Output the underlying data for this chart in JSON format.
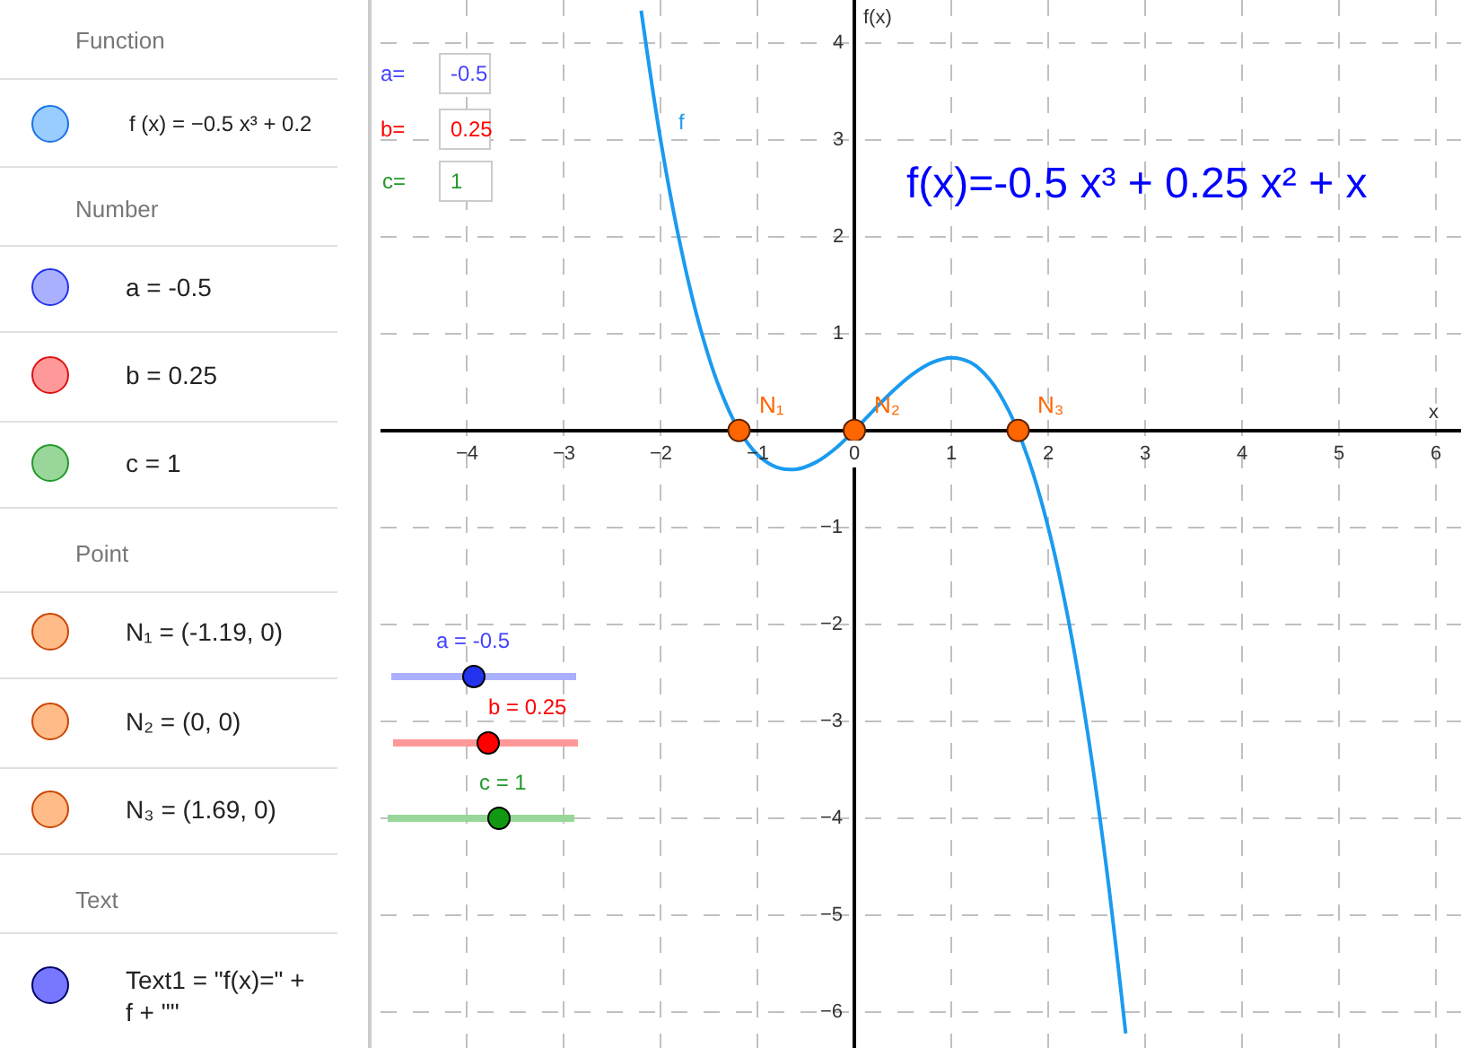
{
  "chart_data": [
    {
      "type": "other",
      "annotations": [
        "Function",
        "f (x) = −0.5 x³ + 0.2",
        "Number",
        "a = -0.5",
        "b = 0.25",
        "c = 1",
        "Point",
        "N₁ = (-1.19, 0)",
        "N₂ = (0, 0)",
        "N₃ = (1.69, 0)",
        "Text",
        "Text1 = \"f(x)=\" +\nf + \"\""
      ]
    },
    {
      "type": "line",
      "xlabel": "x",
      "ylabel": "f(x)",
      "xlim": [
        -4.89,
        6.26
      ],
      "ylim": [
        -6.37,
        4.44
      ],
      "xticks": [
        {
          "value": -4,
          "label": "−4"
        },
        {
          "value": -3,
          "label": "−3"
        },
        {
          "value": -2,
          "label": "−2"
        },
        {
          "value": -1,
          "label": "−1"
        },
        0,
        1,
        2,
        3,
        4,
        5,
        6
      ],
      "yticks": [
        {
          "value": -6,
          "label": "−6"
        },
        {
          "value": -5,
          "label": "−5"
        },
        {
          "value": -4,
          "label": "−4"
        },
        {
          "value": -3,
          "label": "−3"
        },
        {
          "value": -2,
          "label": "−2"
        },
        {
          "value": -1,
          "label": "−1"
        },
        1,
        2,
        3,
        4
      ],
      "grid": true,
      "series": [
        {
          "type": "line",
          "color": "#1a9bf0",
          "marker": "none",
          "x": [
            -2.2,
            -2.0,
            -1.8,
            -1.6,
            -1.4,
            -1.2,
            -1.0,
            -0.8,
            -0.6,
            -0.4,
            -0.2,
            0,
            0.2,
            0.4,
            0.6,
            0.8,
            1.0,
            1.2,
            1.4,
            1.6,
            1.8,
            2.0,
            2.2,
            2.4,
            2.6,
            2.8
          ],
          "values": [
            4.33,
            3.0,
            1.93,
            1.09,
            0.46,
            0.02,
            -0.25,
            -0.38,
            -0.4,
            -0.33,
            -0.19,
            0,
            0.21,
            0.41,
            0.58,
            0.7,
            0.75,
            0.7,
            0.52,
            0.19,
            -0.31,
            -1.0,
            -1.91,
            -3.07,
            -4.5,
            -6.22
          ]
        },
        {
          "type": "scatter",
          "color": "#ff6600",
          "marker": "circle",
          "x": [
            -1.19,
            0,
            1.69
          ],
          "values": [
            0,
            0,
            0
          ]
        }
      ],
      "annotations": [
        "f(x)=-0.5 x³ + 0.25 x² + x",
        "f",
        {
          "text": "N₁",
          "x": -1.19,
          "y": 0
        },
        {
          "text": "N₂",
          "x": 0,
          "y": 0
        },
        {
          "text": "N₃",
          "x": 1.69,
          "y": 0
        },
        "a=",
        "-0.5",
        "b=",
        "0.25",
        "c=",
        "1",
        "a = -0.5",
        "b = 0.25",
        "c = 1"
      ]
    }
  ]
}
